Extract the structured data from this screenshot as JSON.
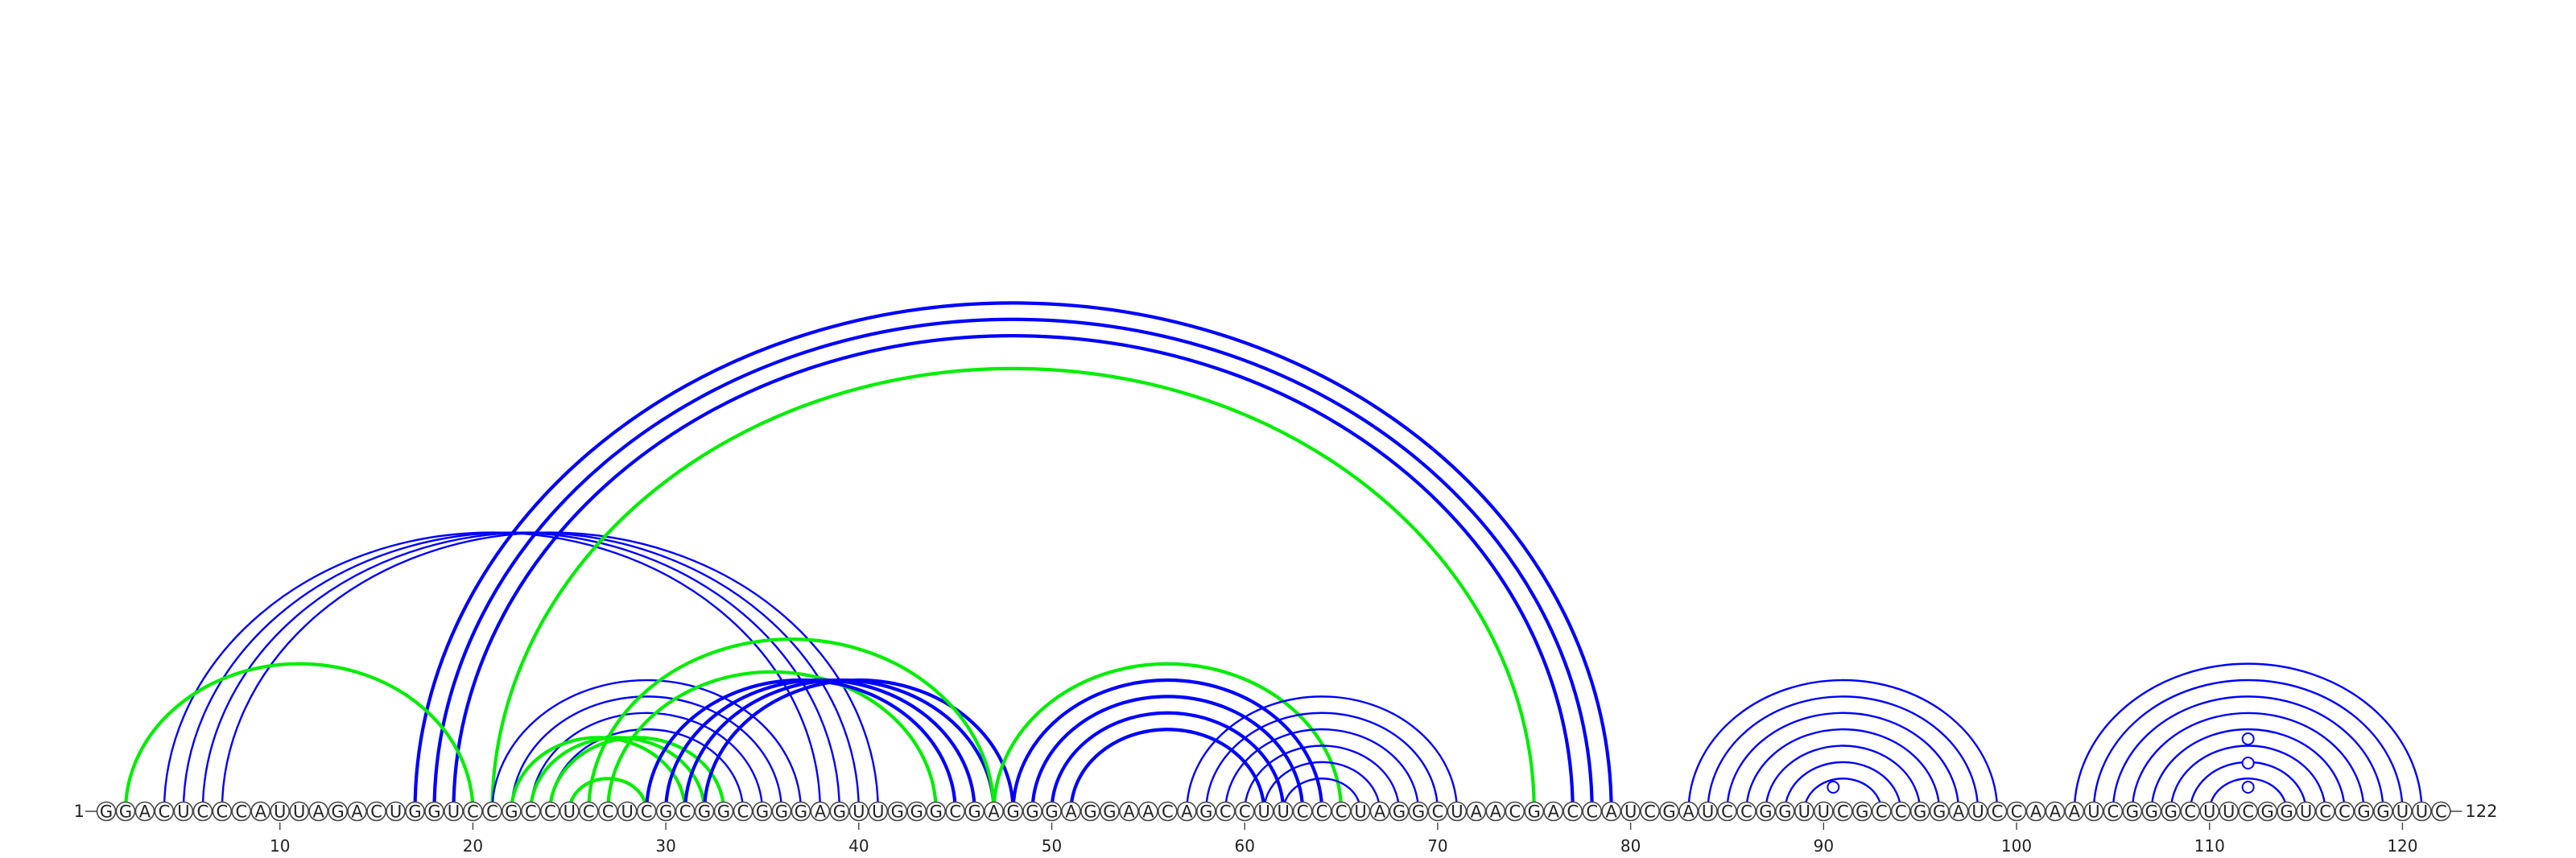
{
  "sequence": "GGACUCCCAUUAGACUGGUCCGCCUCCUCGCGGCGGGAGUUGGGCGAGGGAGGAACAGCCUUCCCUAGGCUAACGACCAUCGAUCCGGUUCGCCGGAUCCAAAUCGGGCUUCGGUCCGGUUC",
  "start_label": "1",
  "end_label": "122",
  "ticks": [
    "10",
    "20",
    "30",
    "40",
    "50",
    "60",
    "70",
    "80",
    "90",
    "100",
    "110",
    "120"
  ],
  "colors": {
    "blue": "#0000ff",
    "green": "#00ee00",
    "loop_marker": "#0000ff"
  },
  "arc_groups": [
    {
      "color": "blue",
      "style": "thin",
      "pairs": [
        [
          4,
          38
        ],
        [
          5,
          39
        ],
        [
          6,
          40
        ],
        [
          7,
          41
        ]
      ]
    },
    {
      "color": "blue",
      "style": "thick",
      "pairs": [
        [
          17,
          79
        ],
        [
          18,
          78
        ],
        [
          19,
          77
        ]
      ]
    },
    {
      "color": "green",
      "style": "thick",
      "pairs": [
        [
          2,
          20
        ],
        [
          21,
          75
        ]
      ]
    },
    {
      "color": "blue",
      "style": "thin",
      "pairs": [
        [
          21,
          37
        ],
        [
          22,
          36
        ],
        [
          23,
          35
        ],
        [
          24,
          34
        ]
      ]
    },
    {
      "color": "green",
      "style": "thick",
      "pairs": [
        [
          22,
          31
        ],
        [
          23,
          32
        ],
        [
          24,
          33
        ],
        [
          25,
          29
        ],
        [
          27,
          44
        ]
      ]
    },
    {
      "color": "blue",
      "style": "thick",
      "pairs": [
        [
          29,
          45
        ],
        [
          30,
          46
        ],
        [
          31,
          47
        ],
        [
          32,
          48
        ]
      ]
    },
    {
      "color": "green",
      "style": "thick",
      "pairs": [
        [
          26,
          47
        ],
        [
          47,
          65
        ]
      ]
    },
    {
      "color": "blue",
      "style": "thick",
      "pairs": [
        [
          48,
          64
        ],
        [
          49,
          63
        ],
        [
          50,
          62
        ],
        [
          51,
          61
        ]
      ]
    },
    {
      "color": "blue",
      "style": "thin",
      "pairs": [
        [
          57,
          71
        ],
        [
          58,
          70
        ],
        [
          59,
          69
        ],
        [
          60,
          68
        ],
        [
          61,
          67
        ],
        [
          62,
          66
        ]
      ]
    },
    {
      "color": "blue",
      "style": "thin",
      "pairs": [
        [
          83,
          99
        ],
        [
          84,
          98
        ],
        [
          85,
          97
        ],
        [
          86,
          96
        ],
        [
          87,
          95
        ],
        [
          88,
          94
        ],
        [
          89,
          93
        ]
      ]
    },
    {
      "color": "blue",
      "style": "thin",
      "pairs": [
        [
          103,
          121
        ],
        [
          104,
          120
        ],
        [
          105,
          119
        ],
        [
          106,
          118
        ],
        [
          107,
          117
        ],
        [
          108,
          116
        ],
        [
          109,
          115
        ],
        [
          110,
          114
        ]
      ]
    }
  ],
  "loop_markers": [
    91,
    112,
    112,
    112
  ]
}
